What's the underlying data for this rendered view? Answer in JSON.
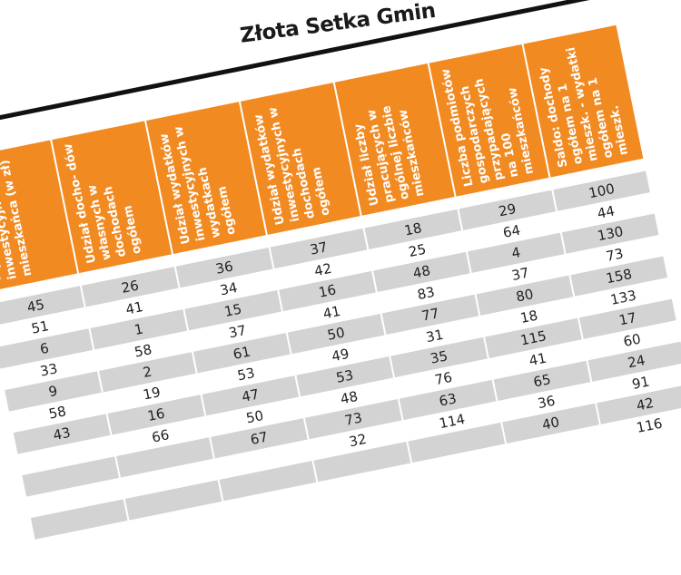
{
  "title": "Złota Setka Gmin",
  "columns": [
    "Wydatki inwestycyjne na 1 mieszkańca (w zł)",
    "Udział docho- dów własnych w dochodach ogółem",
    "Udział wydatków inwestycyjnych w wydatkach ogółem",
    "Udział wydatków inwestycyjnych w dochodach ogółem",
    "Udział liczby pracujących w ogólnej liczbie mieszkańców",
    "Liczba podmiotów gospodarczych przypadających na 100 mieszkańców",
    "Saldo: dochody ogółem na 1 mieszk. - wydatki ogółem na 1 mieszk."
  ],
  "header_color": "#f28a22",
  "rows": [
    [
      "45",
      "26",
      "36",
      "37",
      "18",
      "29",
      "100"
    ],
    [
      "51",
      "41",
      "34",
      "42",
      "25",
      "64",
      "44"
    ],
    [
      "6",
      "1",
      "15",
      "16",
      "48",
      "4",
      "130"
    ],
    [
      "33",
      "58",
      "37",
      "41",
      "83",
      "37",
      "73"
    ],
    [
      "9",
      "2",
      "61",
      "50",
      "77",
      "80",
      "158"
    ],
    [
      "58",
      "19",
      "53",
      "49",
      "31",
      "18",
      "133"
    ],
    [
      "43",
      "16",
      "47",
      "53",
      "35",
      "115",
      "17"
    ],
    [
      "",
      "66",
      "50",
      "48",
      "76",
      "41",
      "60"
    ],
    [
      "",
      "",
      "67",
      "73",
      "63",
      "65",
      "24"
    ],
    [
      "",
      "",
      "",
      "32",
      "114",
      "36",
      "91"
    ],
    [
      "",
      "",
      "",
      "",
      "",
      "40",
      "42"
    ],
    [
      "",
      "",
      "",
      "",
      "",
      "",
      "116"
    ]
  ]
}
